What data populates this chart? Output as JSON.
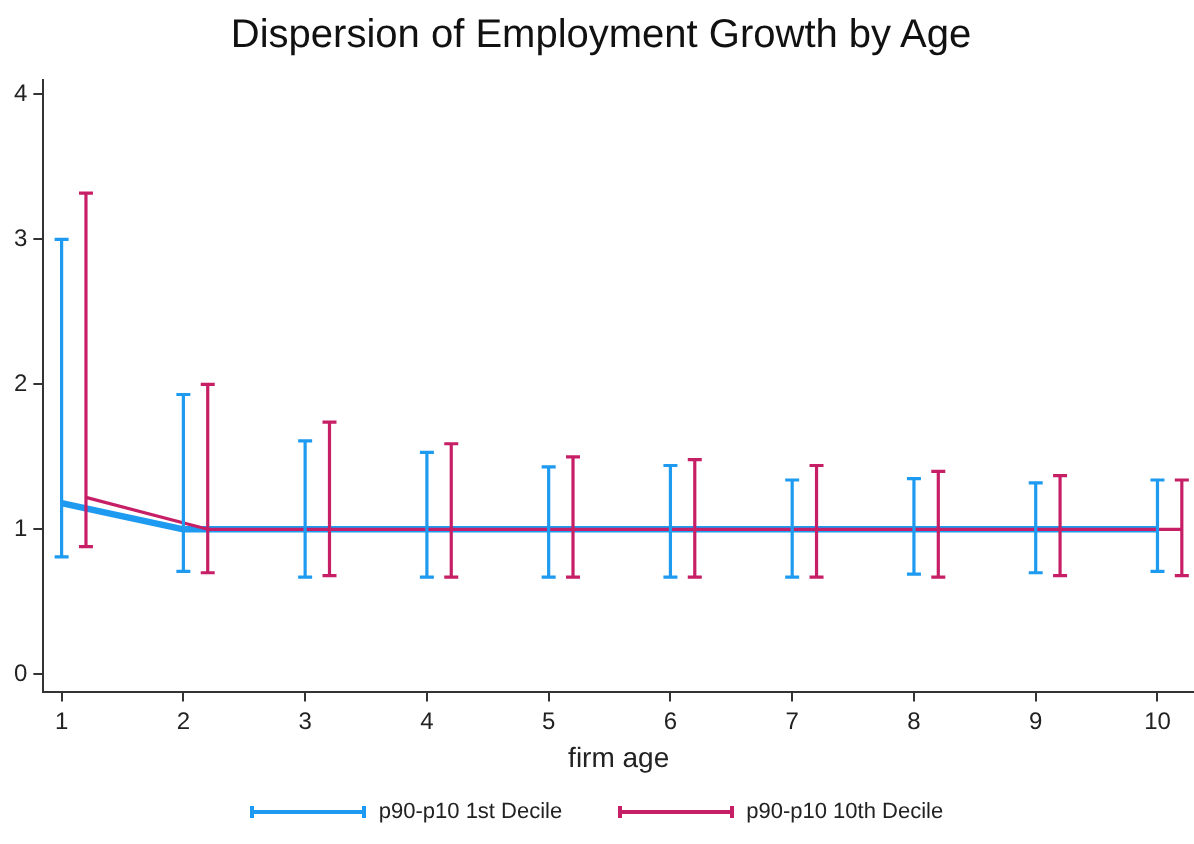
{
  "chart_data": {
    "type": "line",
    "title": "Dispersion of Employment Growth by Age",
    "xlabel": "firm age",
    "xlim": [
      0.85,
      10.3
    ],
    "xticks": [
      1,
      2,
      3,
      4,
      5,
      6,
      7,
      8,
      9,
      10
    ],
    "ylim": [
      -0.12,
      4.1
    ],
    "yticks": [
      0,
      1,
      2,
      3,
      4
    ],
    "grid": false,
    "legend": "bottom",
    "marker": "none",
    "line_style": "solid",
    "series": [
      {
        "name": "p90-p10 1st Decile",
        "color": "#1e9bf0",
        "x": [
          1,
          2,
          3,
          4,
          5,
          6,
          7,
          8,
          9,
          10
        ],
        "values": [
          1.18,
          1,
          1,
          1,
          1,
          1,
          1,
          1,
          1,
          1
        ],
        "errors": [
          [
            0.81,
            3.0
          ],
          [
            0.71,
            1.93
          ],
          [
            0.67,
            1.61
          ],
          [
            0.67,
            1.53
          ],
          [
            0.67,
            1.43
          ],
          [
            0.67,
            1.44
          ],
          [
            0.67,
            1.34
          ],
          [
            0.69,
            1.35
          ],
          [
            0.7,
            1.32
          ],
          [
            0.71,
            1.34
          ]
        ]
      },
      {
        "name": "p90-p10 10th Decile",
        "color": "#c71f66",
        "x": [
          1.2,
          2.2,
          3.2,
          4.2,
          5.2,
          6.2,
          7.2,
          8.2,
          9.2,
          10.2
        ],
        "values": [
          1.22,
          1,
          1,
          1,
          1,
          1,
          1,
          1,
          1,
          1
        ],
        "errors": [
          [
            0.88,
            3.32
          ],
          [
            0.7,
            2.0
          ],
          [
            0.68,
            1.74
          ],
          [
            0.67,
            1.59
          ],
          [
            0.67,
            1.5
          ],
          [
            0.67,
            1.48
          ],
          [
            0.67,
            1.44
          ],
          [
            0.67,
            1.4
          ],
          [
            0.68,
            1.37
          ],
          [
            0.68,
            1.34
          ]
        ]
      }
    ]
  }
}
